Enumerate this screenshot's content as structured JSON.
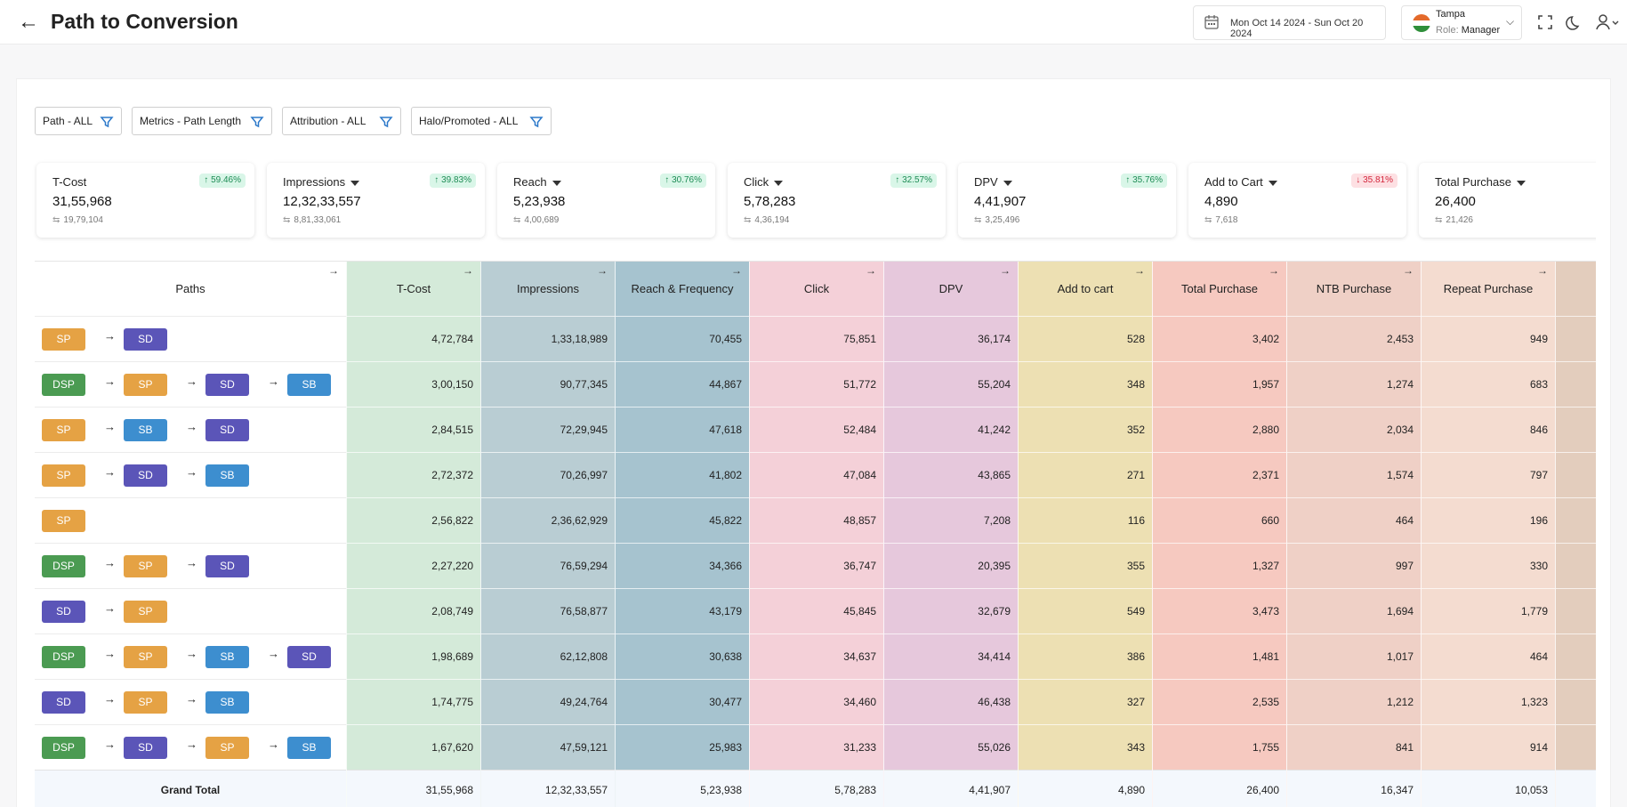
{
  "header": {
    "back_icon": "arrow-left-icon",
    "title": "Path to Conversion",
    "date_range": "Mon Oct 14 2024 - Sun Oct 20 2024",
    "store": "Tampa",
    "role_label": "Role:",
    "role_value": "Manager"
  },
  "filters": [
    {
      "label": "Path - ALL"
    },
    {
      "label": "Metrics - Path Length"
    },
    {
      "label": "Attribution - ALL"
    },
    {
      "label": "Halo/Promoted - ALL"
    }
  ],
  "kpis": [
    {
      "label": "T-Cost",
      "value": "31,55,968",
      "prev": "19,79,104",
      "change": "59.46%",
      "dir": "up",
      "dropdown": false
    },
    {
      "label": "Impressions",
      "value": "12,32,33,557",
      "prev": "8,81,33,061",
      "change": "39.83%",
      "dir": "up",
      "dropdown": true
    },
    {
      "label": "Reach",
      "value": "5,23,938",
      "prev": "4,00,689",
      "change": "30.76%",
      "dir": "up",
      "dropdown": true
    },
    {
      "label": "Click",
      "value": "5,78,283",
      "prev": "4,36,194",
      "change": "32.57%",
      "dir": "up",
      "dropdown": true
    },
    {
      "label": "DPV",
      "value": "4,41,907",
      "prev": "3,25,496",
      "change": "35.76%",
      "dir": "up",
      "dropdown": true
    },
    {
      "label": "Add to Cart",
      "value": "4,890",
      "prev": "7,618",
      "change": "35.81%",
      "dir": "down",
      "dropdown": true
    },
    {
      "label": "Total Purchase",
      "value": "26,400",
      "prev": "21,426",
      "change": "",
      "dir": "up",
      "dropdown": true
    }
  ],
  "table": {
    "paths_header": "Paths",
    "columns": [
      {
        "label": "T-Cost",
        "color": "#d4ead9"
      },
      {
        "label": "Impressions",
        "color": "#b9cdd3"
      },
      {
        "label": "Reach & Frequency",
        "color": "#a6c3cf"
      },
      {
        "label": "Click",
        "color": "#f4d0d8"
      },
      {
        "label": "DPV",
        "color": "#e6c8dc"
      },
      {
        "label": "Add to cart",
        "color": "#ede0b3"
      },
      {
        "label": "Total Purchase",
        "color": "#f6c9c0"
      },
      {
        "label": "NTB Purchase",
        "color": "#efd0c6"
      },
      {
        "label": "Repeat Purchase",
        "color": "#f4dcd0"
      },
      {
        "label": "",
        "color": "#e3cdbd"
      }
    ],
    "rows": [
      {
        "path": [
          "SP",
          "SD"
        ],
        "values": [
          "4,72,784",
          "1,33,18,989",
          "70,455",
          "75,851",
          "36,174",
          "528",
          "3,402",
          "2,453",
          "949",
          ""
        ]
      },
      {
        "path": [
          "DSP",
          "SP",
          "SD",
          "SB"
        ],
        "values": [
          "3,00,150",
          "90,77,345",
          "44,867",
          "51,772",
          "55,204",
          "348",
          "1,957",
          "1,274",
          "683",
          ""
        ]
      },
      {
        "path": [
          "SP",
          "SB",
          "SD"
        ],
        "values": [
          "2,84,515",
          "72,29,945",
          "47,618",
          "52,484",
          "41,242",
          "352",
          "2,880",
          "2,034",
          "846",
          ""
        ]
      },
      {
        "path": [
          "SP",
          "SD",
          "SB"
        ],
        "values": [
          "2,72,372",
          "70,26,997",
          "41,802",
          "47,084",
          "43,865",
          "271",
          "2,371",
          "1,574",
          "797",
          ""
        ]
      },
      {
        "path": [
          "SP"
        ],
        "values": [
          "2,56,822",
          "2,36,62,929",
          "45,822",
          "48,857",
          "7,208",
          "116",
          "660",
          "464",
          "196",
          ""
        ]
      },
      {
        "path": [
          "DSP",
          "SP",
          "SD"
        ],
        "values": [
          "2,27,220",
          "76,59,294",
          "34,366",
          "36,747",
          "20,395",
          "355",
          "1,327",
          "997",
          "330",
          ""
        ]
      },
      {
        "path": [
          "SD",
          "SP"
        ],
        "values": [
          "2,08,749",
          "76,58,877",
          "43,179",
          "45,845",
          "32,679",
          "549",
          "3,473",
          "1,694",
          "1,779",
          ""
        ]
      },
      {
        "path": [
          "DSP",
          "SP",
          "SB",
          "SD"
        ],
        "values": [
          "1,98,689",
          "62,12,808",
          "30,638",
          "34,637",
          "34,414",
          "386",
          "1,481",
          "1,017",
          "464",
          ""
        ]
      },
      {
        "path": [
          "SD",
          "SP",
          "SB"
        ],
        "values": [
          "1,74,775",
          "49,24,764",
          "30,477",
          "34,460",
          "46,438",
          "327",
          "2,535",
          "1,212",
          "1,323",
          ""
        ]
      },
      {
        "path": [
          "DSP",
          "SD",
          "SP",
          "SB"
        ],
        "values": [
          "1,67,620",
          "47,59,121",
          "25,983",
          "31,233",
          "55,026",
          "343",
          "1,755",
          "841",
          "914",
          ""
        ]
      }
    ],
    "grand_total": {
      "label": "Grand Total",
      "values": [
        "31,55,968",
        "12,32,33,557",
        "5,23,938",
        "5,78,283",
        "4,41,907",
        "4,890",
        "26,400",
        "16,347",
        "10,053",
        ""
      ]
    }
  }
}
